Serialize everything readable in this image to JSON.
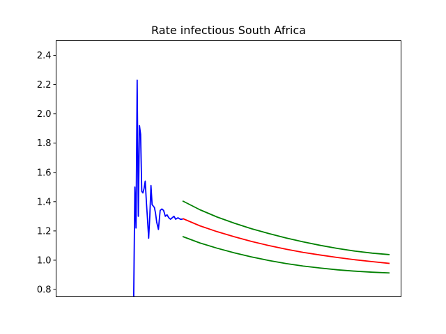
{
  "chart_data": {
    "type": "line",
    "title": "Rate infectious South Africa",
    "xlabel": "",
    "ylabel": "",
    "ylim": [
      0.75,
      2.5
    ],
    "y_ticks": [
      0.8,
      1.0,
      1.2,
      1.4,
      1.6,
      1.8,
      2.0,
      2.2,
      2.4
    ],
    "y_tick_labels": [
      "0.8",
      "1.0",
      "1.2",
      "1.4",
      "1.6",
      "1.8",
      "2.0",
      "2.2",
      "2.4"
    ],
    "xlim": [
      0,
      120
    ],
    "grid": false,
    "colors": {
      "observed": "#0000ff",
      "forecast": "#ff0000",
      "bounds": "#008000"
    },
    "series": [
      {
        "role": "observed",
        "x": [
          27.0,
          27.4,
          27.8,
          28.2,
          28.6,
          29.0,
          29.4,
          29.8,
          30.2,
          30.6,
          31.0,
          31.4,
          31.8,
          32.2,
          32.6,
          33.0,
          33.4,
          33.8,
          34.2,
          34.6,
          35.0,
          35.6,
          36.2,
          36.8,
          37.4,
          38.0,
          38.6,
          39.2,
          39.8,
          40.4,
          41.0,
          41.6,
          42.4,
          43.2,
          44.0
        ],
        "values": [
          0.75,
          1.5,
          1.22,
          2.23,
          1.3,
          1.92,
          1.86,
          1.47,
          1.46,
          1.49,
          1.54,
          1.4,
          1.28,
          1.15,
          1.3,
          1.51,
          1.38,
          1.37,
          1.36,
          1.32,
          1.26,
          1.21,
          1.34,
          1.35,
          1.34,
          1.3,
          1.31,
          1.29,
          1.28,
          1.29,
          1.3,
          1.28,
          1.29,
          1.28,
          1.28
        ]
      },
      {
        "role": "forecast",
        "x": [
          44,
          50,
          56,
          62,
          68,
          74,
          80,
          86,
          92,
          98,
          104,
          110,
          116
        ],
        "values": [
          1.285,
          1.235,
          1.195,
          1.16,
          1.128,
          1.1,
          1.075,
          1.053,
          1.035,
          1.018,
          1.003,
          0.99,
          0.978
        ]
      },
      {
        "role": "upper-bound",
        "x": [
          44,
          50,
          56,
          62,
          68,
          74,
          80,
          86,
          92,
          98,
          104,
          110,
          116
        ],
        "values": [
          1.405,
          1.345,
          1.295,
          1.253,
          1.215,
          1.182,
          1.152,
          1.125,
          1.101,
          1.08,
          1.062,
          1.048,
          1.038
        ]
      },
      {
        "role": "lower-bound",
        "x": [
          44,
          50,
          56,
          62,
          68,
          74,
          80,
          86,
          92,
          98,
          104,
          110,
          116
        ],
        "values": [
          1.162,
          1.118,
          1.082,
          1.05,
          1.022,
          0.998,
          0.977,
          0.96,
          0.946,
          0.934,
          0.925,
          0.918,
          0.913
        ]
      }
    ]
  }
}
